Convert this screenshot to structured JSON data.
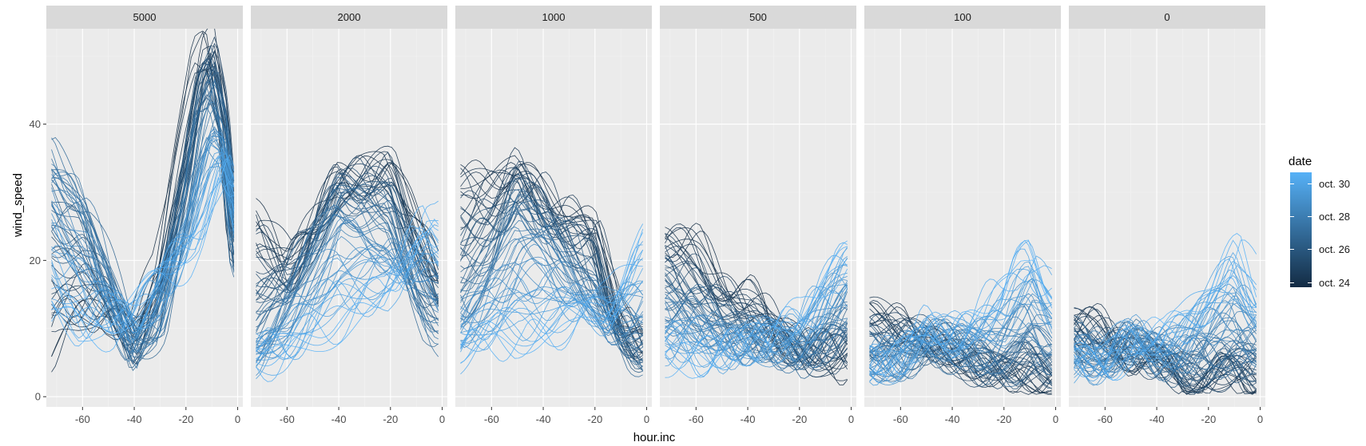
{
  "chart_data": {
    "type": "line",
    "xlabel": "hour.inc",
    "ylabel": "wind_speed",
    "xlim": [
      -74,
      2
    ],
    "ylim": [
      -1.5,
      54
    ],
    "x_ticks": [
      -60,
      -40,
      -20,
      0
    ],
    "y_ticks": [
      0,
      20,
      40
    ],
    "x_tick_labels": [
      "-60",
      "-40",
      "-20",
      "0"
    ],
    "y_tick_labels": [
      "0",
      "20",
      "40"
    ],
    "grid": true,
    "facet_by": "level",
    "panels": [
      {
        "label": "5000",
        "series_sample": [
          {
            "date": "oct. 24",
            "x": [
              -72,
              -60,
              -50,
              -40,
              -30,
              -20,
              -15,
              -10,
              -5,
              -1
            ],
            "y": [
              5,
              10,
              12,
              9,
              20,
              40,
              50,
              52,
              40,
              22
            ]
          },
          {
            "date": "oct. 26",
            "x": [
              -72,
              -60,
              -50,
              -40,
              -30,
              -20,
              -15,
              -10,
              -5,
              -1
            ],
            "y": [
              38,
              30,
              18,
              6,
              10,
              28,
              40,
              45,
              38,
              20
            ]
          },
          {
            "date": "oct. 30",
            "x": [
              -72,
              -60,
              -50,
              -40,
              -30,
              -20,
              -15,
              -10,
              -5,
              -1
            ],
            "y": [
              12,
              8,
              10,
              14,
              18,
              20,
              22,
              28,
              34,
              30
            ]
          }
        ]
      },
      {
        "label": "2000",
        "series_sample": [
          {
            "date": "oct. 24",
            "x": [
              -72,
              -60,
              -50,
              -40,
              -30,
              -20,
              -15,
              -10,
              -5,
              -1
            ],
            "y": [
              28,
              20,
              25,
              32,
              34,
              34,
              30,
              27,
              24,
              20
            ]
          },
          {
            "date": "oct. 26",
            "x": [
              -72,
              -60,
              -50,
              -40,
              -30,
              -20,
              -15,
              -10,
              -5,
              -1
            ],
            "y": [
              8,
              14,
              22,
              30,
              28,
              26,
              20,
              14,
              10,
              9
            ]
          },
          {
            "date": "oct. 30",
            "x": [
              -72,
              -60,
              -50,
              -40,
              -30,
              -20,
              -15,
              -10,
              -5,
              -1
            ],
            "y": [
              5,
              6,
              8,
              10,
              12,
              14,
              18,
              24,
              28,
              26
            ]
          }
        ]
      },
      {
        "label": "1000",
        "series_sample": [
          {
            "date": "oct. 24",
            "x": [
              -72,
              -60,
              -50,
              -40,
              -30,
              -20,
              -15,
              -10,
              -5,
              -1
            ],
            "y": [
              33,
              32,
              34,
              30,
              28,
              25,
              18,
              12,
              10,
              8
            ]
          },
          {
            "date": "oct. 26",
            "x": [
              -72,
              -60,
              -50,
              -40,
              -30,
              -20,
              -15,
              -10,
              -5,
              -1
            ],
            "y": [
              14,
              20,
              28,
              25,
              20,
              15,
              10,
              8,
              6,
              6
            ]
          },
          {
            "date": "oct. 30",
            "x": [
              -72,
              -60,
              -50,
              -40,
              -30,
              -20,
              -15,
              -10,
              -5,
              -1
            ],
            "y": [
              6,
              8,
              7,
              9,
              10,
              12,
              14,
              18,
              22,
              24
            ]
          }
        ]
      },
      {
        "label": "500",
        "series_sample": [
          {
            "date": "oct. 24",
            "x": [
              -72,
              -60,
              -50,
              -40,
              -30,
              -20,
              -15,
              -10,
              -5,
              -1
            ],
            "y": [
              24,
              22,
              18,
              15,
              10,
              8,
              6,
              6,
              5,
              5
            ]
          },
          {
            "date": "oct. 26",
            "x": [
              -72,
              -60,
              -50,
              -40,
              -30,
              -20,
              -15,
              -10,
              -5,
              -1
            ],
            "y": [
              14,
              12,
              10,
              8,
              7,
              6,
              7,
              8,
              10,
              12
            ]
          },
          {
            "date": "oct. 30",
            "x": [
              -72,
              -60,
              -50,
              -40,
              -30,
              -20,
              -15,
              -10,
              -5,
              -1
            ],
            "y": [
              6,
              5,
              6,
              8,
              9,
              12,
              15,
              18,
              20,
              21
            ]
          }
        ]
      },
      {
        "label": "100",
        "series_sample": [
          {
            "date": "oct. 24",
            "x": [
              -72,
              -60,
              -50,
              -40,
              -30,
              -20,
              -15,
              -10,
              -5,
              -1
            ],
            "y": [
              13,
              12,
              8,
              6,
              4,
              3,
              2,
              2,
              2,
              2
            ]
          },
          {
            "date": "oct. 26",
            "x": [
              -72,
              -60,
              -50,
              -40,
              -30,
              -20,
              -15,
              -10,
              -5,
              -1
            ],
            "y": [
              6,
              5,
              8,
              7,
              6,
              5,
              6,
              8,
              7,
              6
            ]
          },
          {
            "date": "oct. 30",
            "x": [
              -72,
              -60,
              -50,
              -40,
              -30,
              -20,
              -15,
              -10,
              -5,
              -1
            ],
            "y": [
              4,
              6,
              10,
              9,
              12,
              16,
              20,
              22,
              18,
              16
            ]
          }
        ]
      },
      {
        "label": "0",
        "series_sample": [
          {
            "date": "oct. 24",
            "x": [
              -72,
              -60,
              -50,
              -40,
              -30,
              -20,
              -15,
              -10,
              -5,
              -1
            ],
            "y": [
              12,
              10,
              6,
              4,
              3,
              2,
              2,
              2,
              2,
              1
            ]
          },
          {
            "date": "oct. 26",
            "x": [
              -72,
              -60,
              -50,
              -40,
              -30,
              -20,
              -15,
              -10,
              -5,
              -1
            ],
            "y": [
              7,
              6,
              8,
              6,
              5,
              6,
              7,
              7,
              6,
              6
            ]
          },
          {
            "date": "oct. 30",
            "x": [
              -72,
              -60,
              -50,
              -40,
              -30,
              -20,
              -15,
              -10,
              -5,
              -1
            ],
            "y": [
              4,
              5,
              9,
              8,
              11,
              16,
              19,
              22,
              18,
              15
            ]
          }
        ]
      }
    ],
    "legend": {
      "title": "date",
      "placement": "right",
      "labels": [
        "oct. 24",
        "oct. 26",
        "oct. 28",
        "oct. 30"
      ],
      "color_low": "#132b43",
      "color_high": "#56b1f7"
    }
  }
}
